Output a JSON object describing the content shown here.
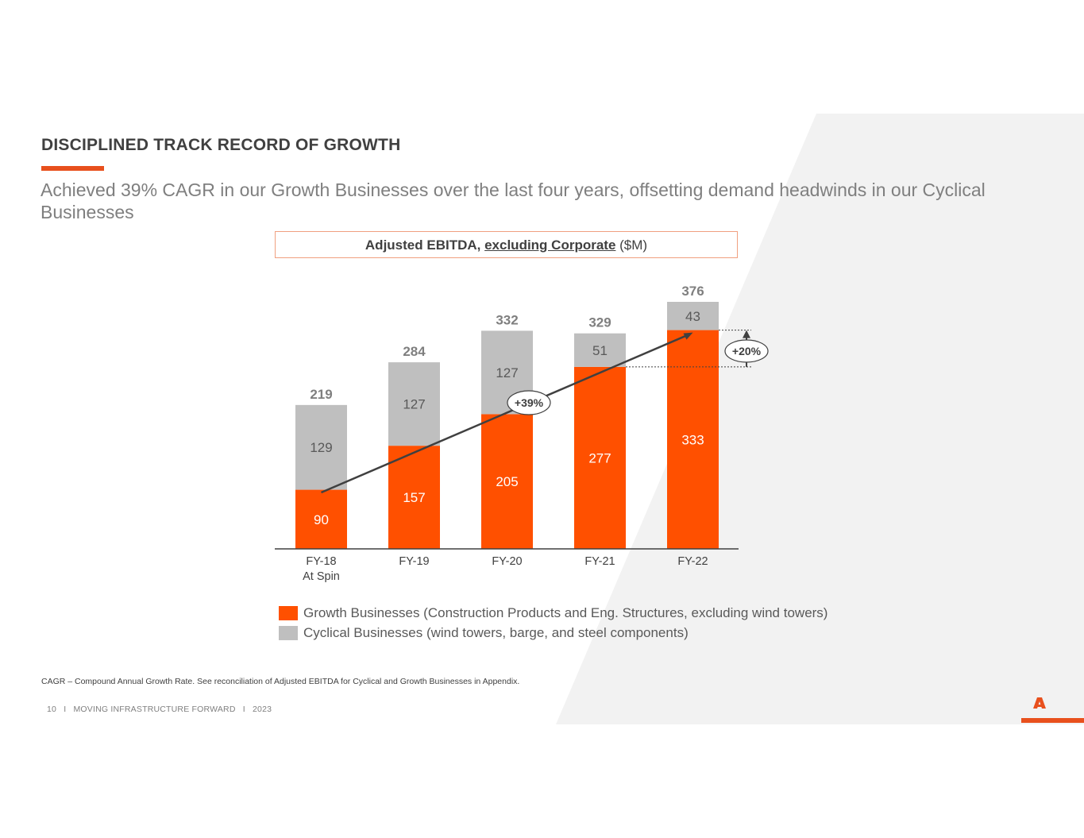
{
  "slide": {
    "title": "DISCIPLINED TRACK RECORD OF GROWTH",
    "subtitle": "Achieved 39% CAGR in our Growth Businesses over the last four years, offsetting demand headwinds in our Cyclical Businesses",
    "chart_title_bold": "Adjusted EBITDA,",
    "chart_title_underlined": "excluding Corporate",
    "chart_title_suffix": "($M)",
    "footnote": "CAGR – Compound Annual Growth Rate. See reconciliation of Adjusted EBITDA for Cyclical and Growth Businesses in Appendix.",
    "footer": {
      "page_number": "10",
      "separator": "I",
      "tagline": "MOVING INFRASTRUCTURE FORWARD",
      "year": "2023"
    },
    "logo_icon": "arcosa-a-logo-icon"
  },
  "colors": {
    "growth": "#ff5000",
    "cyclical": "#bfbfbf",
    "accent": "#e8501d",
    "text_dark": "#404040",
    "text_gray": "#7f7f7f"
  },
  "chart_data": {
    "type": "bar",
    "stacked": true,
    "title": "Adjusted EBITDA, excluding Corporate ($M)",
    "categories": [
      "FY-18",
      "FY-19",
      "FY-20",
      "FY-21",
      "FY-22"
    ],
    "category_sublabels": [
      "At Spin",
      "",
      "",
      "",
      ""
    ],
    "series": [
      {
        "name": "Growth Businesses (Construction Products and Eng. Structures, excluding wind towers)",
        "values": [
          90,
          157,
          205,
          277,
          333
        ]
      },
      {
        "name": "Cyclical Businesses (wind towers, barge, and steel components)",
        "values": [
          129,
          127,
          127,
          51,
          43
        ]
      }
    ],
    "totals": [
      219,
      284,
      332,
      329,
      376
    ],
    "ylim": [
      0,
      376
    ],
    "annotations": [
      {
        "label": "+39%",
        "description": "Growth Businesses CAGR arrow from FY-18 to FY-22"
      },
      {
        "label": "+20%",
        "description": "Growth Businesses increase FY-21 to FY-22"
      }
    ],
    "xlabel": "",
    "ylabel": "",
    "grid": false,
    "legend_position": "bottom"
  }
}
